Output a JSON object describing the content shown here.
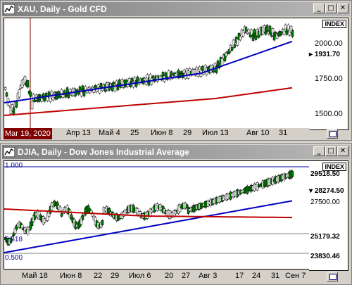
{
  "windows": [
    {
      "title": "XAU, Daily - Gold CFD",
      "index_label": "INDEX",
      "current_price": "1931.70",
      "y_ticks": [
        "2000.00",
        "1750.00",
        "1500.00"
      ],
      "date_highlight": "Mar 19, 2020",
      "dates": [
        "Апр 13",
        "Май 4",
        "25",
        "Июн 8",
        "29",
        "Июл 13",
        "Авг 10",
        "31"
      ]
    },
    {
      "title": "DJIA, Daily - Dow Jones Industrial Average",
      "index_label": "INDEX",
      "y_ticks": [
        "29518.50",
        "28274.50",
        "27500.00",
        "25179.32",
        "23830.46"
      ],
      "fib_labels": [
        "1.000",
        "0.618",
        "0.500"
      ],
      "dates": [
        "Май 18",
        "Июн 8",
        "22",
        "29",
        "Июл 6",
        "20",
        "27",
        "Авг 3",
        "17",
        "24",
        "31",
        "Сен 7"
      ]
    }
  ],
  "icons": {
    "chart_icon": "chart-icon",
    "minimize": "minimize-icon",
    "maximize": "maximize-icon",
    "close": "close-icon"
  },
  "colors": {
    "candle": "#008000",
    "ma_fast": "#0000c0",
    "ma_slow": "#c00000",
    "date_highlight": "#800000"
  }
}
